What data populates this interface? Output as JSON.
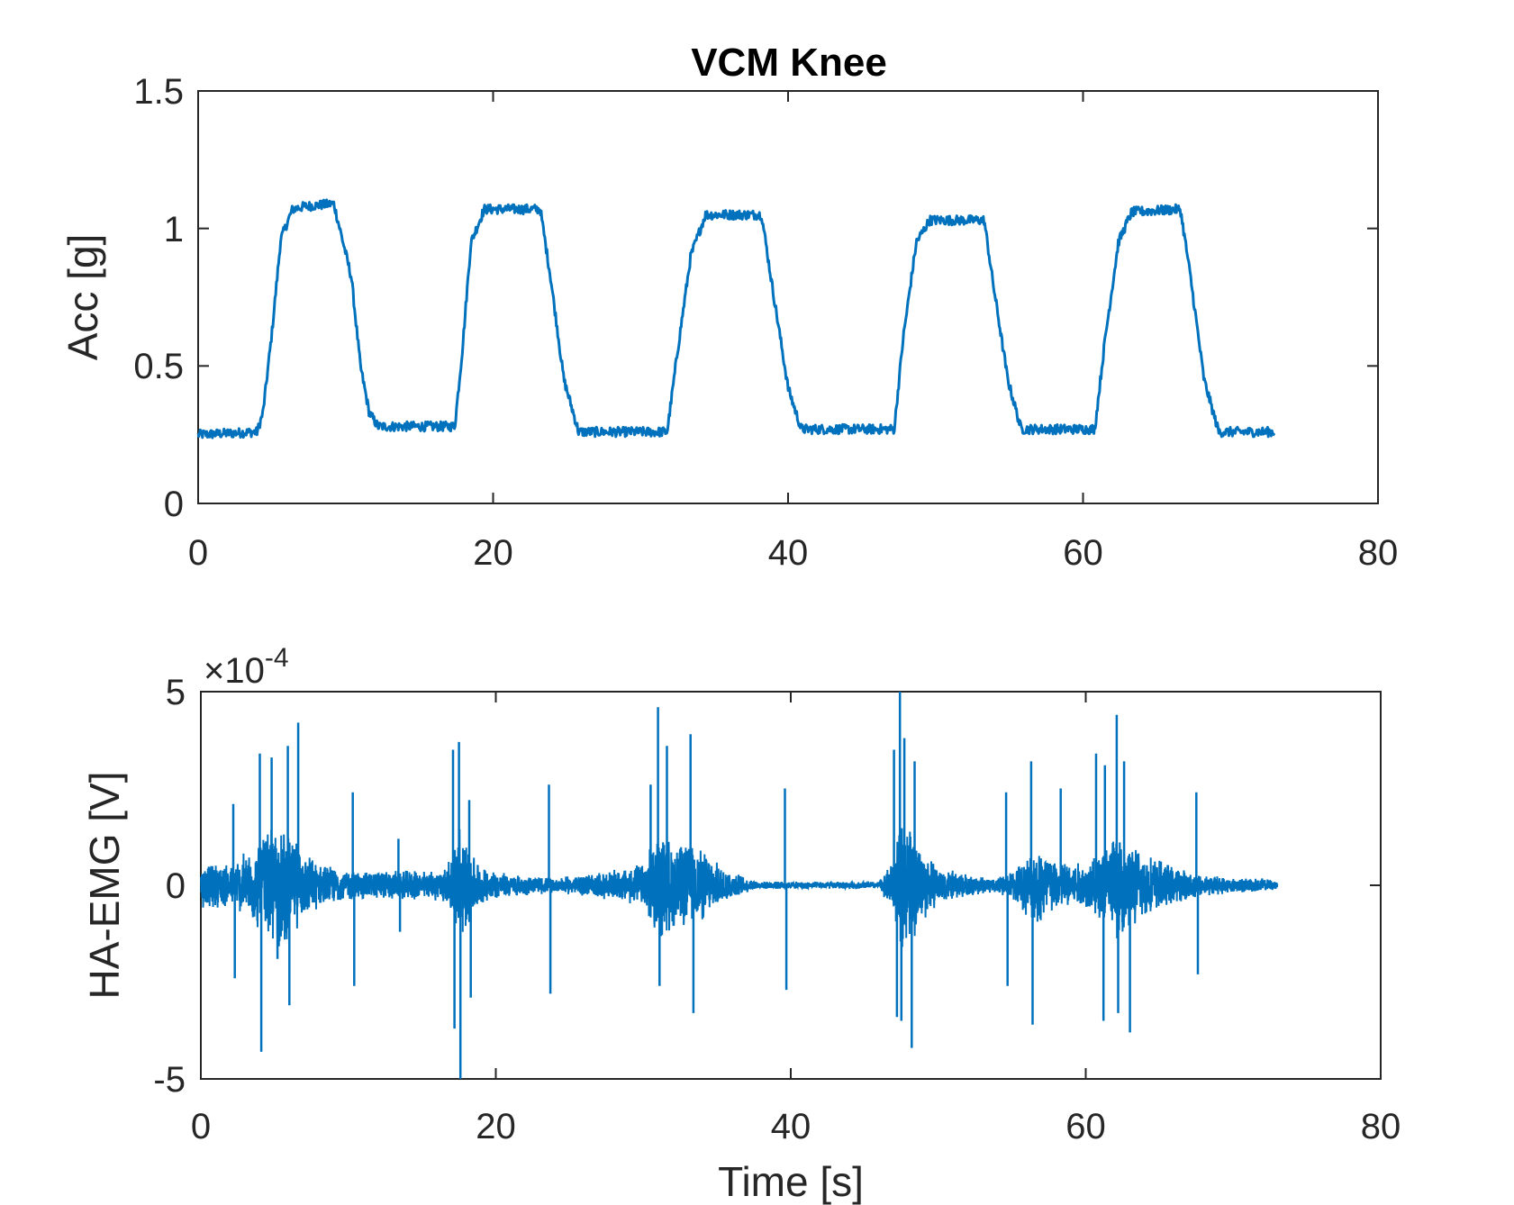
{
  "colors": {
    "series": "#0072bd",
    "axes": "#262626",
    "background": "#ffffff"
  },
  "chart_data": [
    {
      "type": "line",
      "title": "VCM Knee",
      "xlabel": "",
      "ylabel": "Acc [g]",
      "xlim": [
        0,
        80
      ],
      "ylim": [
        0,
        1.5
      ],
      "xticks": [
        "0",
        "20",
        "40",
        "60",
        "80"
      ],
      "yticks": [
        "0",
        "0.5",
        "1",
        "1.5"
      ],
      "grid": false,
      "series": [
        {
          "x": [
            0,
            4,
            4.4,
            5,
            5.6,
            6.4,
            7.2,
            9.2,
            10.4,
            11,
            11.6,
            12.2,
            17.4,
            17.9,
            18.5,
            19.4,
            23.2,
            23.9,
            24.8,
            25.8,
            31.8,
            32.5,
            33.4,
            34.4,
            38.2,
            38.9,
            40,
            40.9,
            47.2,
            47.8,
            48.7,
            49.6,
            53.3,
            53.9,
            54.9,
            55.8,
            60.8,
            61.5,
            62.4,
            63.3,
            66.6,
            67.3,
            68.2,
            69.2,
            73
          ],
          "values": [
            0.25,
            0.26,
            0.33,
            0.62,
            0.96,
            1.07,
            1.08,
            1.09,
            0.82,
            0.5,
            0.33,
            0.28,
            0.28,
            0.55,
            0.95,
            1.07,
            1.07,
            0.82,
            0.45,
            0.26,
            0.26,
            0.55,
            0.9,
            1.05,
            1.05,
            0.8,
            0.42,
            0.27,
            0.27,
            0.6,
            0.95,
            1.03,
            1.03,
            0.8,
            0.45,
            0.27,
            0.27,
            0.6,
            0.95,
            1.06,
            1.07,
            0.82,
            0.45,
            0.26,
            0.26
          ]
        }
      ]
    },
    {
      "type": "line",
      "title": "",
      "xlabel": "Time [s]",
      "ylabel": "HA-EMG [V]",
      "xlim": [
        0,
        80
      ],
      "ylim": [
        -5,
        5
      ],
      "y_multiplier": "×10",
      "y_exponent": "-4",
      "xticks": [
        "0",
        "20",
        "40",
        "60",
        "80"
      ],
      "yticks": [
        "-5",
        "0",
        "5"
      ],
      "grid": false,
      "envelope": {
        "x": [
          0,
          2,
          4,
          5,
          6,
          7,
          8,
          10,
          14,
          16,
          17,
          17.5,
          18,
          19,
          21,
          24,
          28,
          30,
          31,
          32,
          33,
          34,
          35,
          36,
          37,
          38,
          40,
          44,
          46,
          47,
          47.5,
          48,
          49,
          50,
          52,
          54,
          55,
          56,
          57,
          58,
          60,
          61,
          62,
          63,
          64,
          66,
          68,
          70,
          72,
          73
        ],
        "amplitude": [
          0.6,
          0.6,
          1.2,
          1.8,
          1.5,
          0.9,
          0.6,
          0.4,
          0.4,
          0.4,
          0.7,
          1.8,
          1.2,
          0.5,
          0.3,
          0.2,
          0.4,
          0.6,
          1.5,
          1.2,
          1.1,
          1.0,
          0.6,
          0.4,
          0.2,
          0.1,
          0.1,
          0.1,
          0.1,
          0.8,
          1.8,
          1.6,
          1.0,
          0.5,
          0.3,
          0.2,
          0.4,
          0.8,
          1.2,
          0.7,
          0.6,
          1.0,
          1.4,
          1.2,
          0.9,
          0.5,
          0.3,
          0.2,
          0.2,
          0.1
        ]
      },
      "spikes": {
        "x": [
          2.2,
          2.3,
          4,
          4.1,
          4.8,
          5.2,
          5.9,
          6,
          6.6,
          10.3,
          10.4,
          13.4,
          13.5,
          17.1,
          17.2,
          17.5,
          17.6,
          18.2,
          18.3,
          23.6,
          23.7,
          30.5,
          31,
          31.1,
          31.6,
          33.2,
          33.4,
          39.6,
          39.7,
          47,
          47.2,
          47.4,
          47.5,
          47.7,
          48.2,
          48.4,
          54.6,
          54.7,
          56.3,
          56.4,
          58.3,
          60.7,
          61.2,
          61.3,
          62.1,
          62.2,
          62.6,
          63,
          67.5,
          67.6
        ],
        "y": [
          2.1,
          -2.4,
          3.4,
          -4.3,
          3.3,
          -1.9,
          3.6,
          -3.1,
          4.2,
          2.4,
          -2.6,
          1.2,
          -1.2,
          3.5,
          -3.7,
          3.7,
          -5.0,
          2.2,
          -2.9,
          2.6,
          -2.8,
          2.6,
          4.6,
          -2.6,
          3.6,
          3.9,
          -3.3,
          2.5,
          -2.7,
          3.5,
          -3.4,
          5.0,
          -3.5,
          3.8,
          -4.2,
          3.2,
          2.4,
          -2.6,
          3.2,
          -3.6,
          2.5,
          3.4,
          -3.5,
          3.1,
          4.4,
          -3.3,
          3.2,
          -3.8,
          2.4,
          -2.3
        ]
      }
    }
  ]
}
